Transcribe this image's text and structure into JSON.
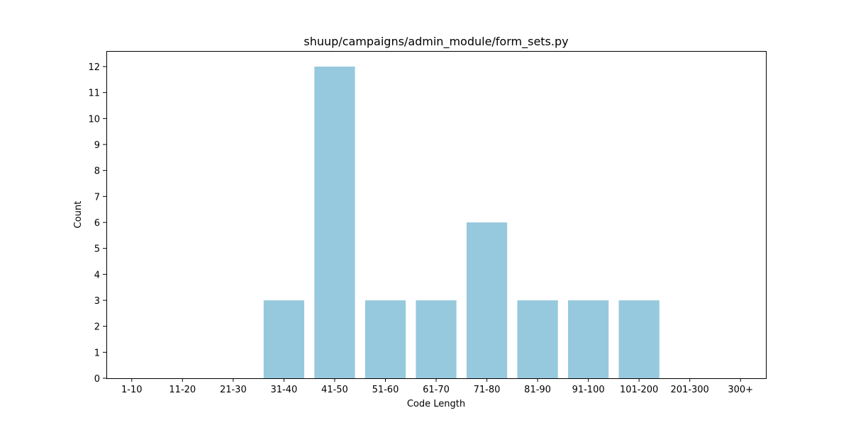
{
  "chart_data": {
    "type": "bar",
    "title": "shuup/campaigns/admin_module/form_sets.py",
    "xlabel": "Code Length",
    "ylabel": "Count",
    "categories": [
      "1-10",
      "11-20",
      "21-30",
      "31-40",
      "41-50",
      "51-60",
      "61-70",
      "71-80",
      "81-90",
      "91-100",
      "101-200",
      "201-300",
      "300+"
    ],
    "values": [
      0,
      0,
      0,
      3,
      12,
      3,
      3,
      6,
      3,
      3,
      3,
      0,
      0
    ],
    "ylim": [
      0,
      12.6
    ],
    "yticks": [
      "0",
      "1",
      "2",
      "3",
      "4",
      "5",
      "6",
      "7",
      "8",
      "9",
      "10",
      "11",
      "12"
    ],
    "grid": false,
    "legend": "none",
    "bar_color": "#96c9dd"
  }
}
